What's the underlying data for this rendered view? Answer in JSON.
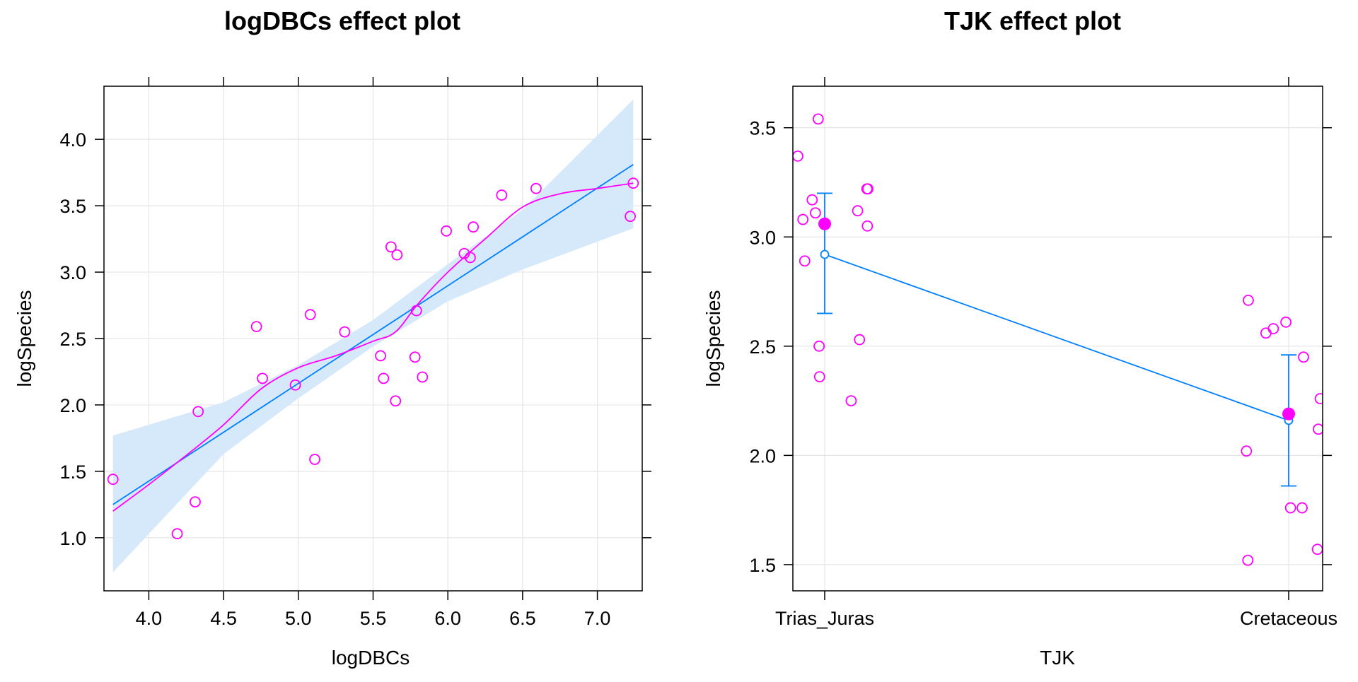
{
  "chart_data": [
    {
      "type": "scatter",
      "title": "logDBCs effect plot",
      "xlabel": "logDBCs",
      "ylabel": "logSpecies",
      "xlim": [
        3.7,
        7.3
      ],
      "ylim": [
        0.6,
        4.4
      ],
      "xticks": [
        "4.0",
        "4.5",
        "5.0",
        "5.5",
        "6.0",
        "6.5",
        "7.0"
      ],
      "yticks": [
        "1.0",
        "1.5",
        "2.0",
        "2.5",
        "3.0",
        "3.5",
        "4.0"
      ],
      "fit_line": {
        "x": [
          3.76,
          7.24
        ],
        "y": [
          1.25,
          3.81
        ]
      },
      "confidence_band": {
        "x": [
          3.76,
          4.5,
          5.0,
          5.5,
          6.0,
          6.5,
          7.24
        ],
        "lower": [
          0.74,
          1.63,
          2.05,
          2.44,
          2.78,
          3.02,
          3.33
        ],
        "upper": [
          1.77,
          2.02,
          2.3,
          2.64,
          3.06,
          3.47,
          4.3
        ]
      },
      "smooth": {
        "x": [
          3.76,
          4.0,
          4.25,
          4.5,
          4.75,
          5.0,
          5.25,
          5.5,
          5.65,
          5.8,
          6.0,
          6.25,
          6.5,
          6.75,
          7.0,
          7.24
        ],
        "y": [
          1.2,
          1.4,
          1.62,
          1.85,
          2.12,
          2.28,
          2.37,
          2.48,
          2.55,
          2.76,
          3.0,
          3.25,
          3.49,
          3.59,
          3.63,
          3.67
        ]
      },
      "points": {
        "x": [
          3.76,
          4.19,
          4.31,
          4.33,
          4.72,
          4.76,
          4.98,
          5.08,
          5.11,
          5.31,
          5.55,
          5.57,
          5.62,
          5.65,
          5.66,
          5.78,
          5.79,
          5.83,
          5.99,
          6.11,
          6.15,
          6.17,
          6.36,
          6.59,
          7.22,
          7.24
        ],
        "y": [
          1.44,
          1.03,
          1.27,
          1.95,
          2.59,
          2.2,
          2.15,
          2.68,
          1.59,
          2.55,
          2.37,
          2.2,
          3.19,
          2.03,
          3.13,
          2.36,
          2.71,
          2.21,
          3.31,
          3.14,
          3.11,
          3.34,
          3.58,
          3.63,
          3.42,
          3.67
        ]
      },
      "colors": {
        "fit": "#0080ff",
        "band": "#d6e9fb",
        "smooth": "#ff00ff",
        "points": "#ff00ff"
      }
    },
    {
      "type": "effect",
      "title": "TJK effect plot",
      "xlabel": "TJK",
      "ylabel": "logSpecies",
      "categories": [
        "Trias_Juras",
        "Cretaceous"
      ],
      "ylim": [
        1.38,
        3.69
      ],
      "yticks": [
        "1.5",
        "2.0",
        "2.5",
        "3.0",
        "3.5"
      ],
      "effect": [
        2.92,
        2.16
      ],
      "ci_lower": [
        2.65,
        1.86
      ],
      "ci_upper": [
        3.2,
        2.46
      ],
      "group_means": [
        3.06,
        2.19
      ],
      "points": {
        "cat": [
          0,
          0,
          0,
          0,
          0,
          0,
          0,
          0,
          0,
          0,
          0,
          0,
          0,
          0,
          1,
          1,
          1,
          1,
          1,
          1,
          1,
          1,
          1,
          1,
          1,
          1
        ],
        "jitter": [
          -0.058,
          -0.047,
          -0.043,
          -0.027,
          -0.02,
          -0.014,
          -0.012,
          -0.011,
          0.057,
          0.071,
          0.075,
          0.092,
          0.091,
          0.093,
          -0.091,
          -0.088,
          -0.087,
          -0.049,
          -0.033,
          -0.006,
          0.004,
          0.029,
          0.032,
          0.062,
          0.068,
          0.064
        ],
        "y": [
          3.37,
          3.08,
          2.89,
          3.17,
          3.11,
          3.54,
          2.5,
          2.36,
          2.25,
          3.12,
          2.53,
          3.05,
          3.22,
          3.22,
          2.02,
          1.52,
          2.71,
          2.56,
          2.58,
          2.61,
          1.76,
          1.76,
          2.45,
          1.57,
          2.26,
          2.12
        ]
      },
      "colors": {
        "fit": "#0080ff",
        "points": "#ff00ff"
      }
    }
  ]
}
